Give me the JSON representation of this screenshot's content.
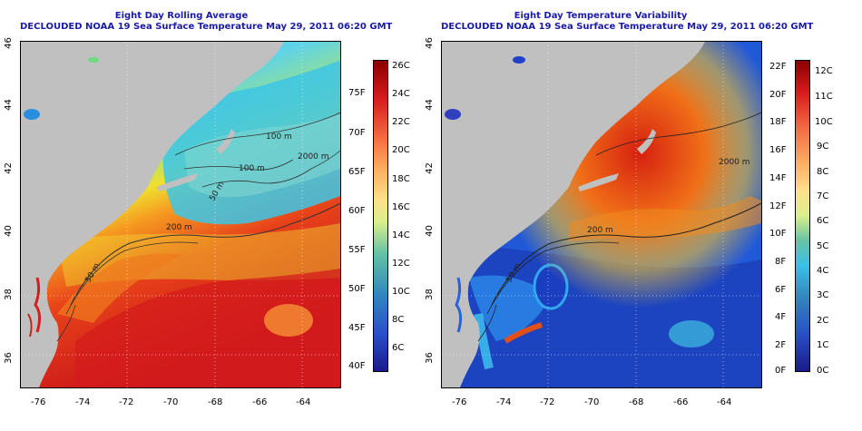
{
  "left_map": {
    "title_line1": "Eight Day Rolling Average",
    "title_line2": "DECLOUDED NOAA 19 Sea Surface Temperature May 29, 2011 06:20 GMT",
    "contour_labels": [
      "100 m",
      "100 m",
      "2000 m",
      "50 m",
      "200 m",
      "50 m"
    ],
    "x_ticks": [
      "-76",
      "-74",
      "-72",
      "-70",
      "-68",
      "-66",
      "-64"
    ],
    "y_ticks": [
      "46",
      "44",
      "42",
      "40",
      "38",
      "36"
    ],
    "colorbar_c": [
      "26C",
      "24C",
      "22C",
      "20C",
      "18C",
      "16C",
      "14C",
      "12C",
      "10C",
      "8C",
      "6C"
    ],
    "colorbar_f": [
      "75F",
      "70F",
      "65F",
      "60F",
      "55F",
      "50F",
      "45F",
      "40F"
    ]
  },
  "right_map": {
    "title_line1": "Eight Day Temperature Variability",
    "title_line2": "DECLOUDED NOAA 19 Sea Surface Temperature May 29, 2011 06:20 GMT",
    "contour_labels": [
      "2000 m",
      "200 m",
      "50 m"
    ],
    "x_ticks": [
      "-76",
      "-74",
      "-72",
      "-70",
      "-68",
      "-66",
      "-64"
    ],
    "y_ticks": [
      "46",
      "44",
      "42",
      "40",
      "38",
      "36"
    ],
    "colorbar_f": [
      "22F",
      "20F",
      "18F",
      "16F",
      "14F",
      "12F",
      "10F",
      "8F",
      "6F",
      "4F",
      "2F",
      "0F"
    ],
    "colorbar_c": [
      "12C",
      "11C",
      "10C",
      "9C",
      "8C",
      "7C",
      "6C",
      "5C",
      "4C",
      "3C",
      "2C",
      "1C",
      "0C"
    ]
  },
  "colors": {
    "land": "#c0c0c0",
    "title": "#1a1aa8"
  }
}
